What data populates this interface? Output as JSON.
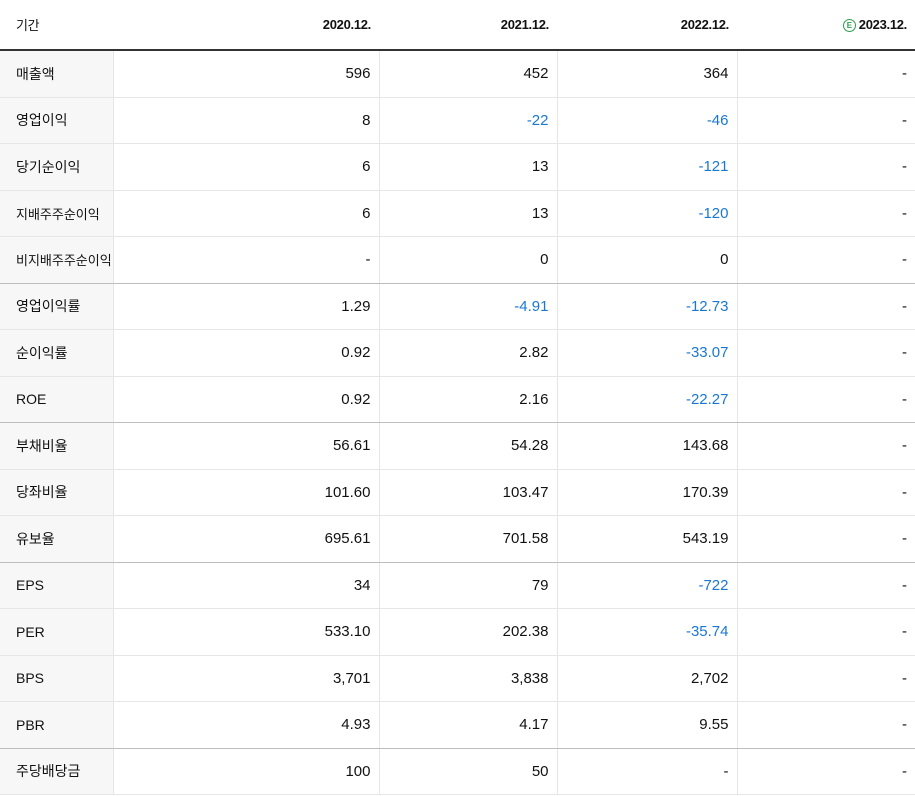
{
  "header": {
    "label": "기간",
    "periods": [
      "2020.12.",
      "2021.12.",
      "2022.12.",
      "2023.12."
    ],
    "estimate_badge": "E"
  },
  "rows": [
    {
      "label": "매출액",
      "values": [
        "596",
        "452",
        "364",
        "-"
      ]
    },
    {
      "label": "영업이익",
      "values": [
        "8",
        "-22",
        "-46",
        "-"
      ]
    },
    {
      "label": "당기순이익",
      "values": [
        "6",
        "13",
        "-121",
        "-"
      ]
    },
    {
      "label": "지배주주순이익",
      "values": [
        "6",
        "13",
        "-120",
        "-"
      ]
    },
    {
      "label": "비지배주주순이익",
      "values": [
        "-",
        "0",
        "0",
        "-"
      ]
    },
    {
      "label": "영업이익률",
      "values": [
        "1.29",
        "-4.91",
        "-12.73",
        "-"
      ]
    },
    {
      "label": "순이익률",
      "values": [
        "0.92",
        "2.82",
        "-33.07",
        "-"
      ]
    },
    {
      "label": "ROE",
      "values": [
        "0.92",
        "2.16",
        "-22.27",
        "-"
      ]
    },
    {
      "label": "부채비율",
      "values": [
        "56.61",
        "54.28",
        "143.68",
        "-"
      ]
    },
    {
      "label": "당좌비율",
      "values": [
        "101.60",
        "103.47",
        "170.39",
        "-"
      ]
    },
    {
      "label": "유보율",
      "values": [
        "695.61",
        "701.58",
        "543.19",
        "-"
      ]
    },
    {
      "label": "EPS",
      "values": [
        "34",
        "79",
        "-722",
        "-"
      ]
    },
    {
      "label": "PER",
      "values": [
        "533.10",
        "202.38",
        "-35.74",
        "-"
      ]
    },
    {
      "label": "BPS",
      "values": [
        "3,701",
        "3,838",
        "2,702",
        "-"
      ]
    },
    {
      "label": "PBR",
      "values": [
        "4.93",
        "4.17",
        "9.55",
        "-"
      ]
    },
    {
      "label": "주당배당금",
      "values": [
        "100",
        "50",
        "-",
        "-"
      ]
    }
  ],
  "colors": {
    "negative": "#1a77d2",
    "estimate": "#2e9e4f"
  }
}
